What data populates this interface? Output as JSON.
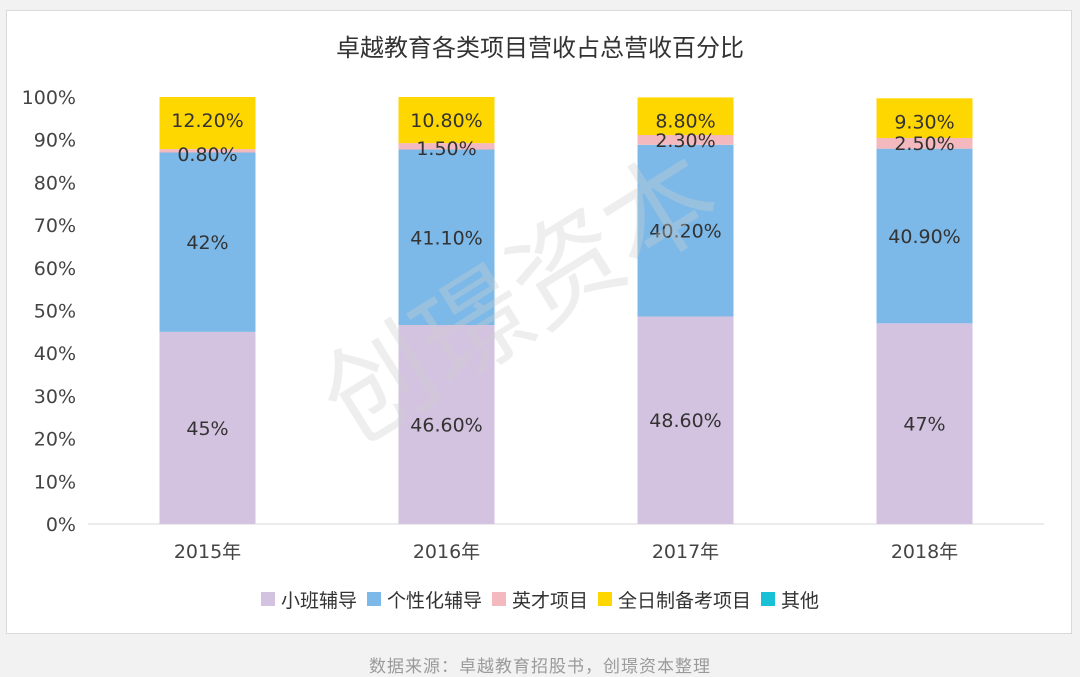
{
  "chart_data": {
    "type": "bar",
    "stacked": true,
    "title": "卓越教育各类项目营收占总营收百分比",
    "categories": [
      "2015年",
      "2016年",
      "2017年",
      "2018年"
    ],
    "ylim": [
      0,
      100
    ],
    "yticks": [
      "0%",
      "10%",
      "20%",
      "30%",
      "40%",
      "50%",
      "60%",
      "70%",
      "80%",
      "90%",
      "100%"
    ],
    "grid": false,
    "legend_position": "bottom",
    "series": [
      {
        "name": "小班辅导",
        "color": "#d4c3e0",
        "values": [
          45,
          46.6,
          48.6,
          47
        ],
        "labels": [
          "45%",
          "46.60%",
          "48.60%",
          "47%"
        ]
      },
      {
        "name": "个性化辅导",
        "color": "#7cb8e8",
        "values": [
          42,
          41.1,
          40.2,
          40.9
        ],
        "labels": [
          "42%",
          "41.10%",
          "40.20%",
          "40.90%"
        ]
      },
      {
        "name": "英才项目",
        "color": "#f4b8bf",
        "values": [
          0.8,
          1.5,
          2.3,
          2.5
        ],
        "labels": [
          "0.80%",
          "1.50%",
          "2.30%",
          "2.50%"
        ]
      },
      {
        "name": "全日制备考项目",
        "color": "#ffd700",
        "values": [
          12.2,
          10.8,
          8.8,
          9.3
        ],
        "labels": [
          "12.20%",
          "10.80%",
          "8.80%",
          "9.30%"
        ]
      },
      {
        "name": "其他",
        "color": "#18c1d6",
        "values": [
          0,
          0,
          0,
          0
        ],
        "labels": [
          "",
          "",
          "",
          ""
        ]
      }
    ]
  },
  "watermark": "创璟资本",
  "source_note": "数据来源：卓越教育招股书，创璟资本整理"
}
